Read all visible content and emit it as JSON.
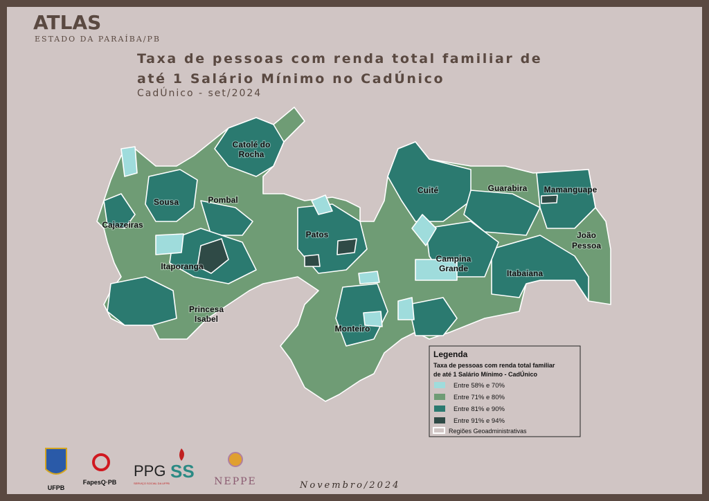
{
  "header": {
    "title": "ATLAS",
    "subtitle": "ESTADO DA PARAÍBA/PB"
  },
  "map": {
    "title_lines": [
      "Taxa de pessoas com renda total familiar de",
      "até 1 Salário Mínimo no CadÚnico"
    ],
    "subtitle": "CadÚnico - set/2024",
    "regions": [
      {
        "lines": [
          "Catolé do",
          "Rocha"
        ]
      },
      {
        "lines": [
          "Sousa"
        ]
      },
      {
        "lines": [
          "Pombal"
        ]
      },
      {
        "lines": [
          "Cajazeiras"
        ]
      },
      {
        "lines": [
          "Patos"
        ]
      },
      {
        "lines": [
          "Itaporanga"
        ]
      },
      {
        "lines": [
          "Princesa",
          "Isabel"
        ]
      },
      {
        "lines": [
          "Monteiro"
        ]
      },
      {
        "lines": [
          "Cuité"
        ]
      },
      {
        "lines": [
          "Guarabira"
        ]
      },
      {
        "lines": [
          "Mamanguape"
        ]
      },
      {
        "lines": [
          "João",
          "Pessoa"
        ]
      },
      {
        "lines": [
          "Campina",
          "Grande"
        ]
      },
      {
        "lines": [
          "Itabaiana"
        ]
      }
    ]
  },
  "legend": {
    "title": "Legenda",
    "subtitle_lines": [
      "Taxa de pessoas com renda total familiar",
      "de até 1 Salário Mínimo - CadÚnico"
    ],
    "items": [
      {
        "label": "Entre 58% e 70%",
        "color": "#9fdcdc"
      },
      {
        "label": "Entre 71% e 80%",
        "color": "#6f9c75"
      },
      {
        "label": "Entre 81% e 90%",
        "color": "#2b7a70"
      },
      {
        "label": "Entre 91% e 94%",
        "color": "#2f4a46"
      }
    ],
    "boundary": "Regiões Geoadministrativas"
  },
  "footer": {
    "logos": [
      "UFPB",
      "FapesQ·PB",
      "PPG",
      "SS",
      "SERVIÇO SOCIAL DA UFPB",
      "NEPPE"
    ],
    "date": "Novembro/2024"
  }
}
